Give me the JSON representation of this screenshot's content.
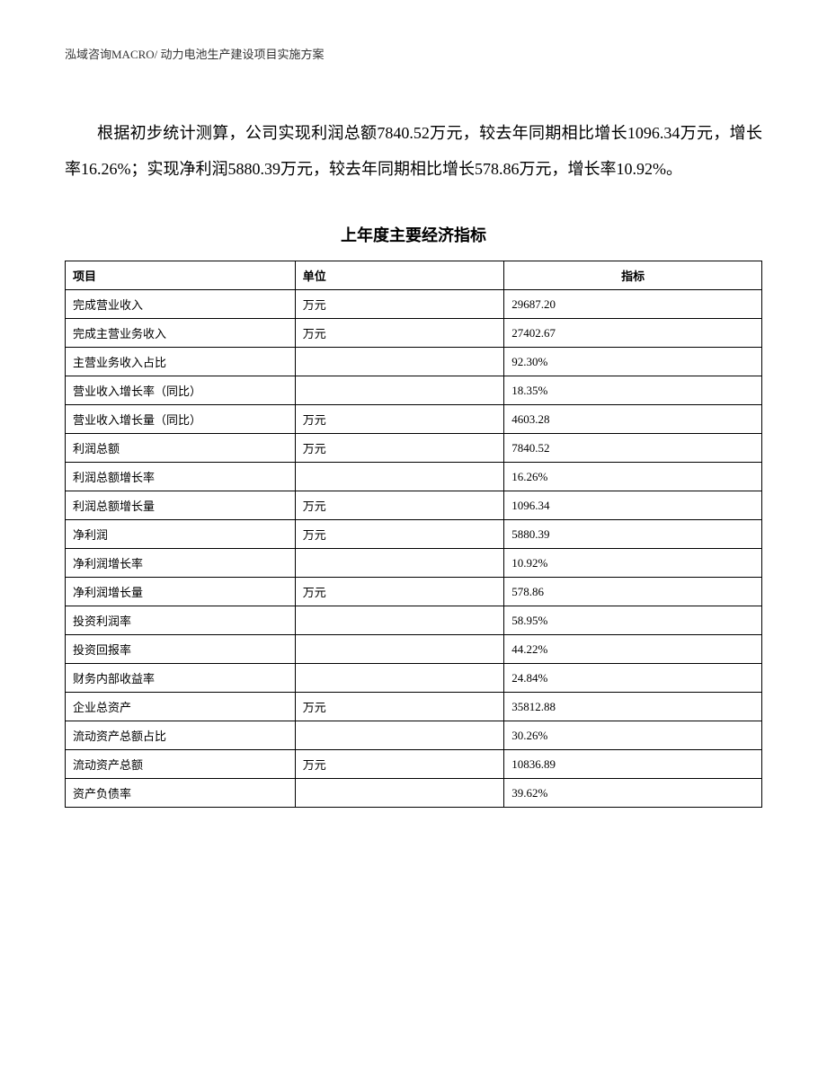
{
  "header": {
    "text": "泓域咨询MACRO/ 动力电池生产建设项目实施方案"
  },
  "paragraph": {
    "text": "根据初步统计测算，公司实现利润总额7840.52万元，较去年同期相比增长1096.34万元，增长率16.26%；实现净利润5880.39万元，较去年同期相比增长578.86万元，增长率10.92%。"
  },
  "table": {
    "title": "上年度主要经济指标",
    "columns": {
      "col1": "项目",
      "col2": "单位",
      "col3": "指标"
    },
    "rows": [
      {
        "item": "完成营业收入",
        "unit": "万元",
        "value": "29687.20"
      },
      {
        "item": "完成主营业务收入",
        "unit": "万元",
        "value": "27402.67"
      },
      {
        "item": "主营业务收入占比",
        "unit": "",
        "value": "92.30%"
      },
      {
        "item": "营业收入增长率（同比）",
        "unit": "",
        "value": "18.35%"
      },
      {
        "item": "营业收入增长量（同比）",
        "unit": "万元",
        "value": "4603.28"
      },
      {
        "item": "利润总额",
        "unit": "万元",
        "value": "7840.52"
      },
      {
        "item": "利润总额增长率",
        "unit": "",
        "value": "16.26%"
      },
      {
        "item": "利润总额增长量",
        "unit": "万元",
        "value": "1096.34"
      },
      {
        "item": "净利润",
        "unit": "万元",
        "value": "5880.39"
      },
      {
        "item": "净利润增长率",
        "unit": "",
        "value": "10.92%"
      },
      {
        "item": "净利润增长量",
        "unit": "万元",
        "value": "578.86"
      },
      {
        "item": "投资利润率",
        "unit": "",
        "value": "58.95%"
      },
      {
        "item": "投资回报率",
        "unit": "",
        "value": "44.22%"
      },
      {
        "item": "财务内部收益率",
        "unit": "",
        "value": "24.84%"
      },
      {
        "item": "企业总资产",
        "unit": "万元",
        "value": "35812.88"
      },
      {
        "item": "流动资产总额占比",
        "unit": "",
        "value": "30.26%"
      },
      {
        "item": "流动资产总额",
        "unit": "万元",
        "value": "10836.89"
      },
      {
        "item": "资产负债率",
        "unit": "",
        "value": "39.62%"
      }
    ]
  }
}
